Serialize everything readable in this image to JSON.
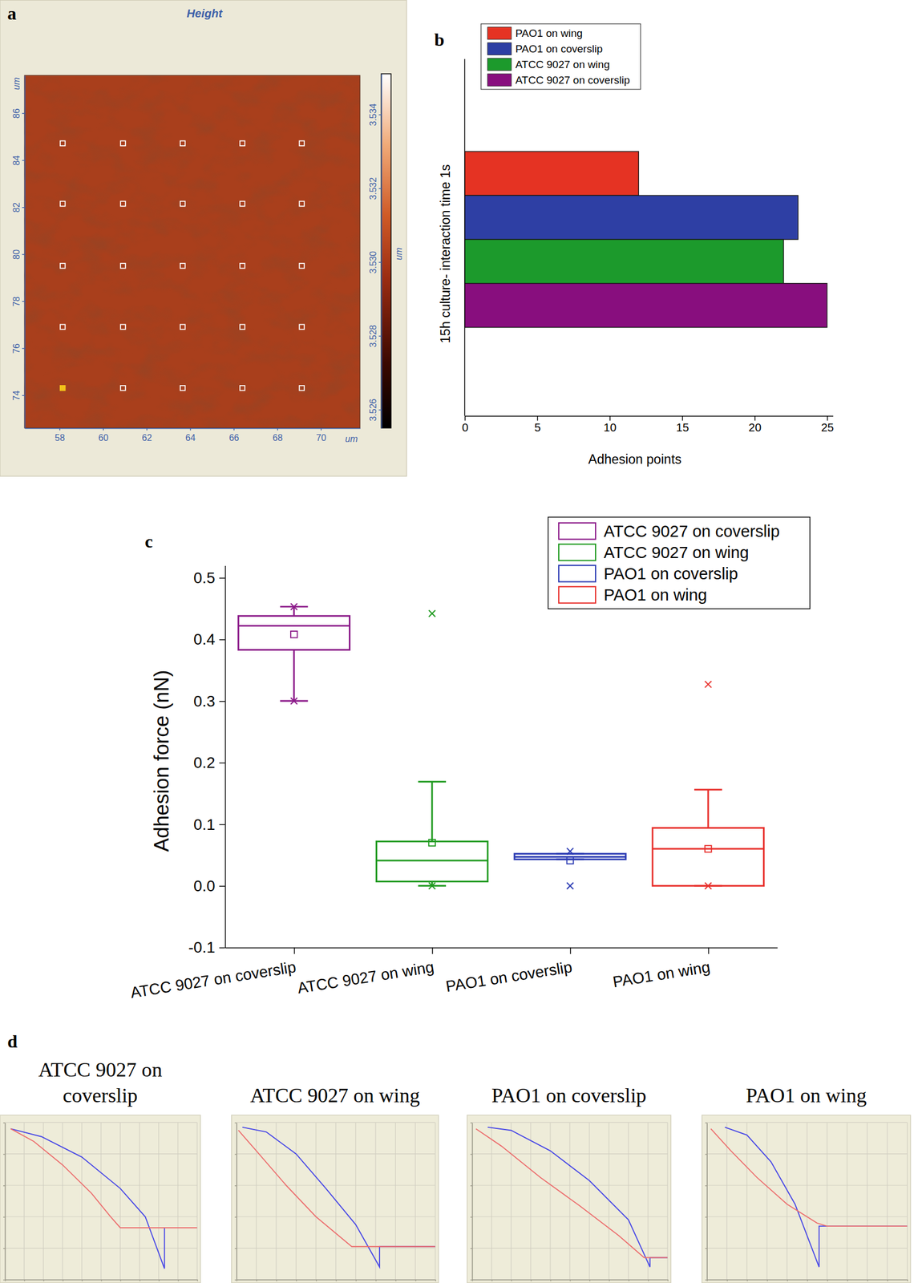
{
  "chart_data": [
    {
      "type": "image",
      "title": "Height",
      "annotations": [
        "a"
      ],
      "xlabel": "um",
      "ylabel": "um",
      "xlim": [
        56.4,
        71.8
      ],
      "xticks": [
        58,
        60,
        62,
        64,
        66,
        68,
        70
      ],
      "ylim": [
        72.6,
        87.6
      ],
      "yticks": [
        74,
        76,
        78,
        80,
        82,
        84,
        86
      ],
      "colorbar_label": "um",
      "colorbar_range": [
        3.5255,
        3.5351
      ],
      "colorbar_ticks": [
        3.526,
        3.528,
        {
          "value": 3.53,
          "label": "3.530"
        },
        3.532,
        3.534
      ],
      "series": [
        {
          "color": "#ffffff",
          "marker": "square-open",
          "x": [
            58.15,
            60.92,
            63.66,
            66.4,
            69.13,
            58.15,
            60.92,
            63.66,
            66.4,
            69.13,
            58.15,
            60.92,
            63.66,
            66.4,
            69.13,
            58.15,
            60.92,
            63.66,
            66.4,
            69.13,
            60.92,
            63.66,
            66.4,
            69.13
          ],
          "values": [
            84.71,
            84.71,
            84.71,
            84.71,
            84.71,
            82.14,
            82.14,
            82.14,
            82.14,
            82.14,
            79.5,
            79.5,
            79.5,
            79.5,
            79.5,
            76.9,
            76.9,
            76.9,
            76.9,
            76.9,
            74.3,
            74.3,
            74.3,
            74.3
          ]
        },
        {
          "color": "#f2c21a",
          "marker": "square",
          "x": [
            58.15
          ],
          "values": [
            74.3
          ]
        }
      ]
    },
    {
      "type": "bar",
      "orientation": "horizontal",
      "annotations": [
        "b"
      ],
      "ylabel": "15h culture- interaction time 1s",
      "xlabel": "Adhesion points",
      "categories": [
        "PAO1 on wing",
        "PAO1 on coverslip",
        "ATCC 9027 on wing",
        "ATCC 9027 on coverslip"
      ],
      "values": [
        12,
        23,
        22,
        25
      ],
      "colors": [
        "#e53323",
        "#2e3fa4",
        "#1c9a2c",
        "#880e7e"
      ],
      "xlim": [
        0,
        25.4
      ],
      "xticks": [
        0,
        5,
        10,
        15,
        20,
        25
      ],
      "legend": "top-left",
      "tick_labels": "x"
    },
    {
      "type": "box",
      "annotations": [
        "c"
      ],
      "ylabel": "Adhesion force (nN)",
      "categories": [
        "ATCC 9027 on coverslip",
        "ATCC 9027 on wing",
        "PAO1 on coverslip",
        "PAO1 on wing"
      ],
      "ylim": [
        -0.1,
        0.52
      ],
      "yticks": [
        -0.1,
        {
          "value": 0,
          "label": "0.0"
        },
        0.1,
        0.2,
        0.3,
        0.4,
        0.5
      ],
      "legend": "top-right",
      "series": [
        {
          "name": "ATCC 9027 on coverslip",
          "color": "#8b1a89",
          "q1": 0.383,
          "median": 0.422,
          "q3": 0.438,
          "whisker_low": 0.3,
          "whisker_high": 0.453,
          "mean": 0.408,
          "min": 0.3,
          "max": 0.453
        },
        {
          "name": "ATCC 9027 on wing",
          "color": "#1f9a1f",
          "q1": 0.007,
          "median": 0.041,
          "q3": 0.072,
          "whisker_low": 0,
          "whisker_high": 0.169,
          "mean": 0.07,
          "min": 0,
          "max": 0.442
        },
        {
          "name": "PAO1 on coverslip",
          "color": "#2b3bb3",
          "q1": 0.043,
          "median": 0.047,
          "q3": 0.052,
          "whisker_low": 0.043,
          "whisker_high": 0.052,
          "mean": 0.041,
          "min": 0,
          "max": 0.056
        },
        {
          "name": "PAO1 on wing",
          "color": "#e8302c",
          "q1": 0,
          "median": 0.06,
          "q3": 0.094,
          "whisker_low": 0,
          "whisker_high": 0.156,
          "mean": 0.06,
          "min": 0,
          "max": 0.327
        }
      ]
    },
    {
      "type": "line",
      "title": "ATCC 9027 on coverslip",
      "annotations": [
        "d"
      ],
      "xlim": [
        0,
        100
      ],
      "ylim": [
        0,
        100
      ],
      "xticks": [
        0,
        10,
        20,
        30,
        40,
        50,
        60,
        70,
        80,
        90,
        100
      ],
      "yticks": [
        0,
        20,
        40,
        60,
        80,
        100
      ],
      "grid": true,
      "tick_labels": false,
      "series": [
        {
          "color": "#4646e6",
          "x": [
            3,
            19,
            40,
            60,
            73,
            83,
            83,
            100
          ],
          "values": [
            96,
            91,
            78,
            58,
            40,
            7,
            33,
            33
          ]
        },
        {
          "color": "#ec6f6f",
          "x": [
            3,
            15,
            30,
            45,
            55,
            60,
            100
          ],
          "values": [
            96,
            88,
            73,
            55,
            40,
            33,
            33
          ]
        }
      ]
    },
    {
      "type": "line",
      "title": "ATCC 9027 on wing",
      "xlim": [
        0,
        100
      ],
      "ylim": [
        0,
        100
      ],
      "xticks": [
        0,
        10,
        20,
        30,
        40,
        50,
        60,
        70,
        80,
        90,
        100
      ],
      "yticks": [
        0,
        20,
        40,
        60,
        80,
        100
      ],
      "grid": true,
      "tick_labels": false,
      "series": [
        {
          "color": "#4646e6",
          "x": [
            3,
            15,
            30,
            45,
            60,
            72,
            72,
            100
          ],
          "values": [
            97,
            94,
            80,
            58,
            35,
            8,
            21,
            21
          ]
        },
        {
          "color": "#ec6f6f",
          "x": [
            1,
            10,
            25,
            40,
            58,
            100
          ],
          "values": [
            95,
            82,
            60,
            40,
            21,
            21
          ]
        }
      ]
    },
    {
      "type": "line",
      "title": "PAO1 on coverslip",
      "xlim": [
        0,
        100
      ],
      "ylim": [
        0,
        100
      ],
      "xticks": [
        0,
        10,
        20,
        30,
        40,
        50,
        60,
        70,
        80,
        90,
        100
      ],
      "yticks": [
        0,
        20,
        40,
        60,
        80,
        100
      ],
      "grid": true,
      "tick_labels": false,
      "series": [
        {
          "color": "#4646e6",
          "x": [
            8,
            20,
            40,
            60,
            80,
            91,
            91,
            100
          ],
          "values": [
            97,
            95,
            82,
            63,
            38,
            8,
            14,
            14
          ]
        },
        {
          "color": "#ec6f6f",
          "x": [
            2,
            15,
            35,
            55,
            75,
            88,
            100
          ],
          "values": [
            96,
            85,
            65,
            47,
            28,
            14,
            14
          ]
        }
      ]
    },
    {
      "type": "line",
      "title": "PAO1 on wing",
      "xlim": [
        0,
        100
      ],
      "ylim": [
        0,
        100
      ],
      "xticks": [
        0,
        10,
        20,
        30,
        40,
        50,
        60,
        70,
        80,
        90,
        100
      ],
      "yticks": [
        0,
        20,
        40,
        60,
        80,
        100
      ],
      "grid": true,
      "tick_labels": false,
      "series": [
        {
          "color": "#4646e6",
          "x": [
            9,
            20,
            32,
            44,
            56,
            56,
            100
          ],
          "values": [
            97,
            92,
            75,
            48,
            8,
            34,
            34
          ]
        },
        {
          "color": "#ec6f6f",
          "x": [
            2,
            12,
            25,
            40,
            55,
            60,
            100
          ],
          "values": [
            96,
            82,
            65,
            48,
            36,
            34,
            34
          ]
        }
      ]
    }
  ]
}
